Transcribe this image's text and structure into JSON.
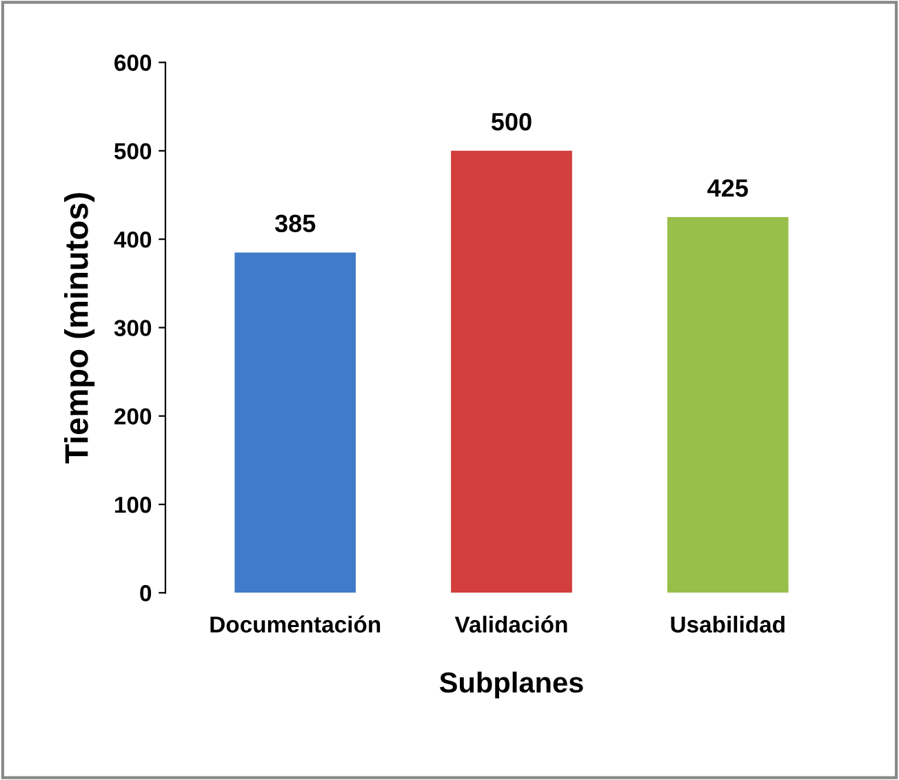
{
  "chart_data": {
    "type": "bar",
    "xlabel": "Subplanes",
    "ylabel": "Tiempo (minutos)",
    "categories": [
      "Documentación",
      "Validación",
      "Usabilidad"
    ],
    "values": [
      385,
      500,
      425
    ],
    "colors": [
      "#3f7bc8",
      "#d23f3c",
      "#98bf4a"
    ],
    "ylim": [
      0,
      600
    ],
    "yticks": [
      0,
      100,
      200,
      300,
      400,
      500,
      600
    ],
    "data_labels": true,
    "grid": false,
    "legend": false
  }
}
